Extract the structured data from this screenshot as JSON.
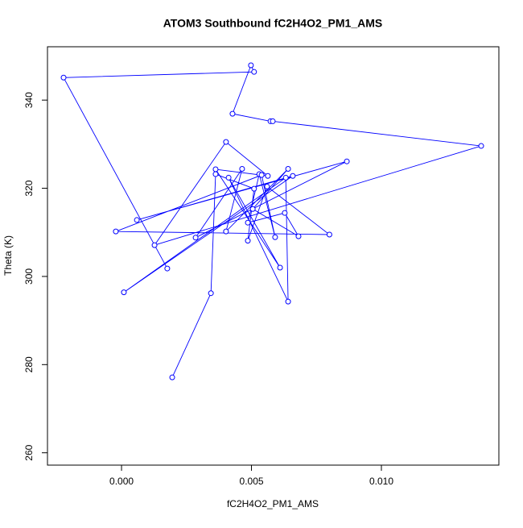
{
  "chart_data": {
    "type": "line-points",
    "title": "ATOM3 Southbound fC2H4O2_PM1_AMS",
    "x_label": "fC2H4O2_PM1_AMS",
    "y_label": "Theta (K)",
    "color": "#0000ff",
    "x": [
      0.00176,
      -0.00223,
      0.0051,
      0.00498,
      0.00427,
      0.00573,
      0.00582,
      0.01384,
      0.00127,
      0.00402,
      0.00563,
      0.00362,
      0.0061,
      0.00412,
      0.00641,
      0.00632,
      9e-05,
      0.00659,
      0.00059,
      0.00867,
      0.00285,
      0.00464,
      0.00402,
      0.00641,
      0.00505,
      0.00681,
      0.00628,
      0.00486,
      0.0053,
      0.00591,
      0.00539,
      -0.00022,
      0.008,
      0.0056,
      0.00486,
      0.0051,
      0.00362,
      0.00344,
      0.00195
    ],
    "y": [
      301.8,
      345.1,
      346.4,
      347.9,
      336.9,
      335.2,
      335.2,
      329.6,
      307.1,
      330.5,
      322.8,
      324.3,
      302.0,
      322.4,
      294.3,
      322.4,
      296.4,
      322.8,
      312.8,
      326.1,
      308.8,
      324.4,
      310.2,
      324.4,
      315.3,
      309.1,
      314.4,
      312.2,
      323.2,
      308.9,
      323.0,
      310.2,
      309.5,
      320.4,
      308.1,
      319.9,
      323.2,
      296.2,
      277.1
    ],
    "xlim": [
      -0.00285,
      0.01452
    ],
    "ylim": [
      257.2,
      352.1
    ],
    "xticks": [
      {
        "value": 0,
        "label": "0.000"
      },
      {
        "value": 0.005,
        "label": "0.005"
      },
      {
        "value": 0.01,
        "label": "0.010"
      }
    ],
    "yticks": [
      260,
      280,
      300,
      320,
      340
    ]
  }
}
